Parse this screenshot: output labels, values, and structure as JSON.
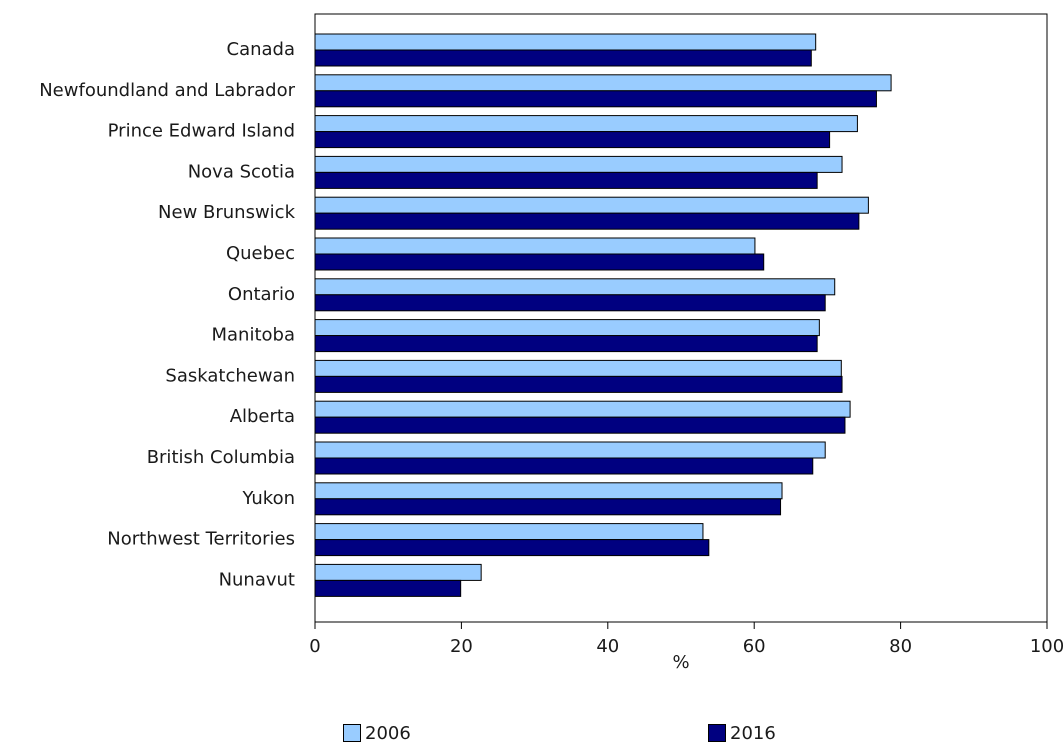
{
  "chart_data": {
    "type": "bar",
    "orientation": "horizontal",
    "title": "",
    "xlabel": "%",
    "ylabel": "",
    "xlim": [
      0,
      100
    ],
    "xticks": [
      "0",
      "20",
      "40",
      "60",
      "80",
      "100"
    ],
    "grid": false,
    "legend_position": "bottom",
    "categories": [
      "Canada",
      "Newfoundland and Labrador",
      "Prince Edward Island",
      "Nova Scotia",
      "New Brunswick",
      "Quebec",
      "Ontario",
      "Manitoba",
      "Saskatchewan",
      "Alberta",
      "British Columbia",
      "Yukon",
      "Northwest Territories",
      "Nunavut"
    ],
    "series": [
      {
        "name": "2006",
        "color": "#99ccff",
        "values": [
          68.4,
          78.7,
          74.1,
          72.0,
          75.6,
          60.1,
          71.0,
          68.9,
          71.9,
          73.1,
          69.7,
          63.8,
          53.0,
          22.7
        ]
      },
      {
        "name": "2016",
        "color": "#000080",
        "values": [
          67.8,
          76.7,
          70.3,
          68.6,
          74.3,
          61.3,
          69.7,
          68.6,
          72.0,
          72.4,
          68.0,
          63.6,
          53.8,
          19.9
        ]
      }
    ]
  }
}
